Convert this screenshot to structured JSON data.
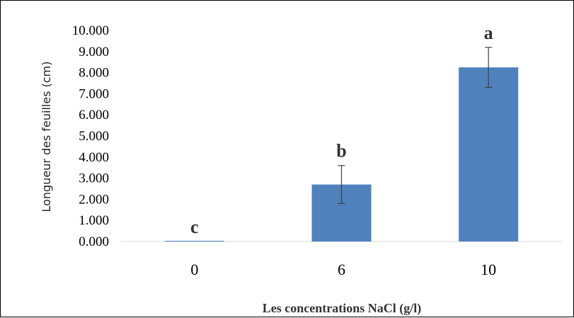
{
  "chart_data": {
    "type": "bar",
    "categories": [
      "0",
      "6",
      "10"
    ],
    "values": [
      0.0,
      2.7,
      8.25
    ],
    "errors": [
      0.0,
      0.9,
      0.95
    ],
    "annotations": [
      "c",
      "b",
      "a"
    ],
    "ylim": [
      0,
      10
    ],
    "yticks": [
      "0.000",
      "1.000",
      "2.000",
      "3.000",
      "4.000",
      "5.000",
      "6.000",
      "7.000",
      "8.000",
      "9.000",
      "10.000"
    ],
    "ylabel": "Longueur des feuilles (cm)",
    "xlabel": "Les concentrations NaCl (g/l)",
    "bar_color": "#4f81bd",
    "grid": false,
    "legend": "none"
  }
}
